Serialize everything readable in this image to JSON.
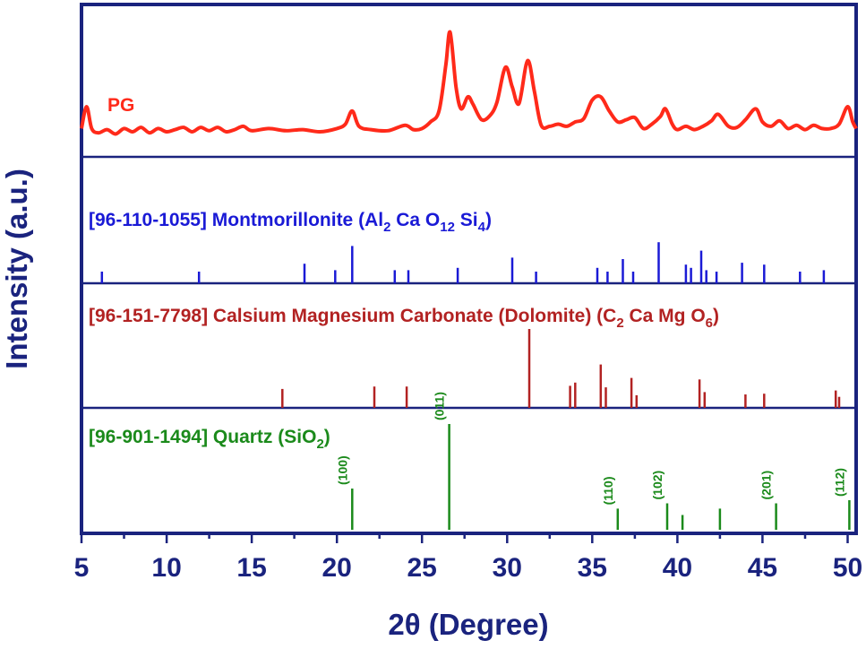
{
  "chart_data": {
    "type": "line",
    "xlabel": "2θ (Degree)",
    "ylabel": "Intensity (a.u.)",
    "xlim": [
      5,
      50.5
    ],
    "xticks": [
      5,
      10,
      15,
      20,
      25,
      30,
      35,
      40,
      45,
      50
    ],
    "colors": {
      "axis": "#1a237e",
      "pg": "#ff2a1a",
      "montmorillonite": "#1a1ad6",
      "dolomite": "#b22222",
      "quartz": "#1b8a1b"
    },
    "pg_series": {
      "label": "PG",
      "points": [
        [
          5.0,
          0.12
        ],
        [
          5.3,
          0.32
        ],
        [
          5.6,
          0.12
        ],
        [
          6.0,
          0.08
        ],
        [
          6.5,
          0.11
        ],
        [
          7.0,
          0.07
        ],
        [
          7.5,
          0.12
        ],
        [
          8.0,
          0.09
        ],
        [
          8.5,
          0.13
        ],
        [
          9.0,
          0.08
        ],
        [
          9.5,
          0.12
        ],
        [
          10.0,
          0.09
        ],
        [
          10.5,
          0.11
        ],
        [
          11.0,
          0.13
        ],
        [
          11.5,
          0.09
        ],
        [
          12.0,
          0.13
        ],
        [
          12.5,
          0.1
        ],
        [
          13.0,
          0.13
        ],
        [
          13.5,
          0.09
        ],
        [
          14.0,
          0.11
        ],
        [
          14.5,
          0.14
        ],
        [
          15.0,
          0.1
        ],
        [
          16.0,
          0.12
        ],
        [
          17.0,
          0.1
        ],
        [
          18.0,
          0.11
        ],
        [
          19.0,
          0.09
        ],
        [
          20.0,
          0.12
        ],
        [
          20.5,
          0.16
        ],
        [
          20.9,
          0.28
        ],
        [
          21.3,
          0.14
        ],
        [
          22.0,
          0.11
        ],
        [
          23.0,
          0.1
        ],
        [
          24.0,
          0.15
        ],
        [
          24.5,
          0.11
        ],
        [
          25.0,
          0.12
        ],
        [
          25.5,
          0.18
        ],
        [
          26.0,
          0.28
        ],
        [
          26.4,
          0.7
        ],
        [
          26.65,
          1.0
        ],
        [
          27.0,
          0.5
        ],
        [
          27.3,
          0.3
        ],
        [
          27.7,
          0.41
        ],
        [
          28.0,
          0.34
        ],
        [
          28.5,
          0.2
        ],
        [
          29.0,
          0.24
        ],
        [
          29.4,
          0.36
        ],
        [
          29.9,
          0.68
        ],
        [
          30.3,
          0.5
        ],
        [
          30.7,
          0.35
        ],
        [
          31.2,
          0.74
        ],
        [
          31.6,
          0.46
        ],
        [
          32.0,
          0.15
        ],
        [
          32.5,
          0.14
        ],
        [
          33.0,
          0.16
        ],
        [
          33.5,
          0.14
        ],
        [
          34.0,
          0.18
        ],
        [
          34.5,
          0.21
        ],
        [
          35.0,
          0.38
        ],
        [
          35.5,
          0.41
        ],
        [
          36.0,
          0.28
        ],
        [
          36.5,
          0.18
        ],
        [
          37.0,
          0.2
        ],
        [
          37.5,
          0.22
        ],
        [
          38.0,
          0.12
        ],
        [
          38.5,
          0.16
        ],
        [
          39.0,
          0.23
        ],
        [
          39.3,
          0.3
        ],
        [
          39.7,
          0.16
        ],
        [
          40.0,
          0.11
        ],
        [
          40.5,
          0.14
        ],
        [
          41.0,
          0.11
        ],
        [
          41.5,
          0.14
        ],
        [
          42.0,
          0.19
        ],
        [
          42.4,
          0.25
        ],
        [
          43.0,
          0.14
        ],
        [
          43.5,
          0.13
        ],
        [
          44.0,
          0.2
        ],
        [
          44.6,
          0.3
        ],
        [
          45.0,
          0.18
        ],
        [
          45.5,
          0.14
        ],
        [
          46.0,
          0.19
        ],
        [
          46.5,
          0.12
        ],
        [
          47.0,
          0.15
        ],
        [
          47.5,
          0.11
        ],
        [
          48.0,
          0.15
        ],
        [
          48.5,
          0.12
        ],
        [
          49.0,
          0.12
        ],
        [
          49.5,
          0.16
        ],
        [
          50.0,
          0.32
        ],
        [
          50.3,
          0.18
        ],
        [
          50.5,
          0.12
        ]
      ]
    },
    "reference_panels": [
      {
        "id": "montmorillonite",
        "label_parts": {
          "prefix": "[96-110-1055] Montmorillonite (Al",
          "sub1": "2",
          "mid1": " Ca O",
          "sub2": "12",
          "mid2": " Si",
          "sub3": "4",
          "suffix": ")"
        },
        "lines": [
          [
            6.2,
            0.25
          ],
          [
            11.9,
            0.25
          ],
          [
            18.1,
            0.42
          ],
          [
            19.9,
            0.28
          ],
          [
            20.9,
            0.8
          ],
          [
            23.4,
            0.28
          ],
          [
            24.2,
            0.28
          ],
          [
            27.1,
            0.33
          ],
          [
            30.3,
            0.55
          ],
          [
            31.7,
            0.25
          ],
          [
            35.3,
            0.33
          ],
          [
            35.9,
            0.25
          ],
          [
            36.8,
            0.52
          ],
          [
            37.4,
            0.25
          ],
          [
            38.9,
            0.88
          ],
          [
            40.5,
            0.4
          ],
          [
            40.8,
            0.33
          ],
          [
            41.4,
            0.7
          ],
          [
            41.7,
            0.28
          ],
          [
            42.3,
            0.25
          ],
          [
            43.8,
            0.44
          ],
          [
            45.1,
            0.4
          ],
          [
            47.2,
            0.25
          ],
          [
            48.6,
            0.28
          ]
        ]
      },
      {
        "id": "dolomite",
        "label_parts": {
          "prefix": "[96-151-7798] Calsium Magnesium Carbonate (Dolomite) (C",
          "sub1": "2",
          "mid1": " Ca Mg O",
          "sub2": "6",
          "mid2": "",
          "sub3": "",
          "suffix": ")"
        },
        "lines": [
          [
            16.8,
            0.24
          ],
          [
            22.2,
            0.27
          ],
          [
            24.1,
            0.27
          ],
          [
            31.3,
            1.0
          ],
          [
            33.7,
            0.28
          ],
          [
            34.0,
            0.32
          ],
          [
            35.5,
            0.55
          ],
          [
            35.8,
            0.26
          ],
          [
            37.3,
            0.38
          ],
          [
            37.6,
            0.16
          ],
          [
            41.3,
            0.36
          ],
          [
            41.6,
            0.2
          ],
          [
            44.0,
            0.17
          ],
          [
            45.1,
            0.18
          ],
          [
            49.3,
            0.22
          ],
          [
            49.5,
            0.14
          ]
        ]
      },
      {
        "id": "quartz",
        "label_parts": {
          "prefix": "[96-901-1494] Quartz (SiO",
          "sub1": "2",
          "mid1": "",
          "sub2": "",
          "mid2": "",
          "sub3": "",
          "suffix": ")"
        },
        "lines": [
          [
            20.9,
            0.39
          ],
          [
            26.6,
            1.0
          ],
          [
            36.5,
            0.2
          ],
          [
            39.4,
            0.25
          ],
          [
            40.3,
            0.14
          ],
          [
            42.5,
            0.2
          ],
          [
            45.8,
            0.25
          ],
          [
            50.1,
            0.28
          ]
        ],
        "hkl": [
          {
            "x": 20.9,
            "text": "(100)"
          },
          {
            "x": 26.6,
            "text": "(011)"
          },
          {
            "x": 36.5,
            "text": "(110)"
          },
          {
            "x": 39.4,
            "text": "(102)"
          },
          {
            "x": 45.8,
            "text": "(201)"
          },
          {
            "x": 50.1,
            "text": "(112)"
          }
        ]
      }
    ]
  }
}
